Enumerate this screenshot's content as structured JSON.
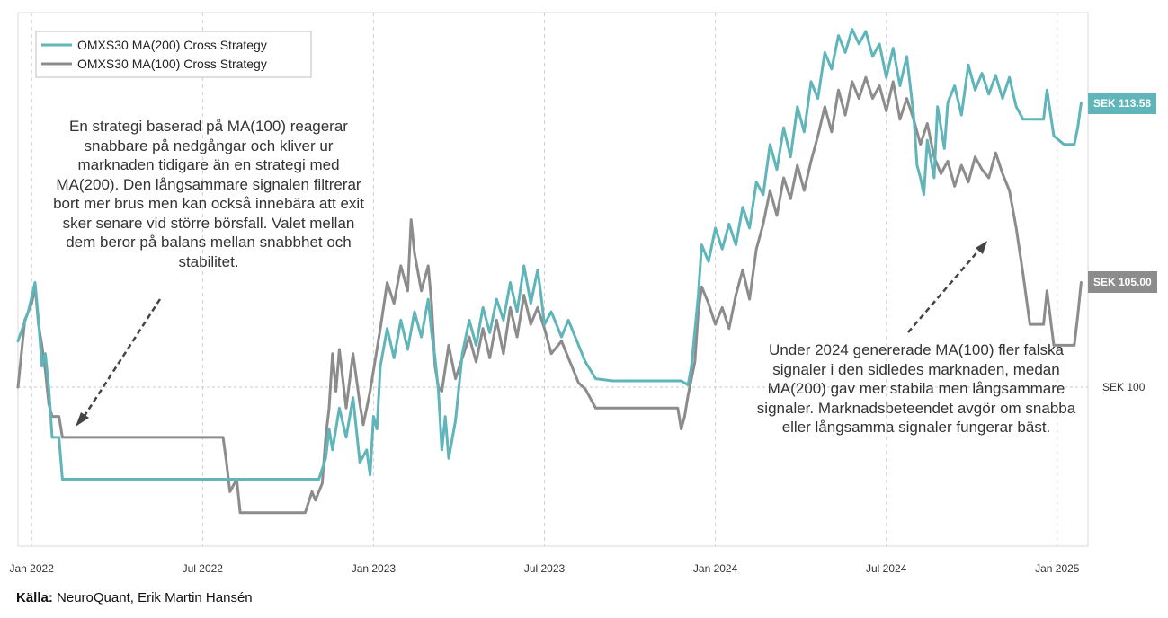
{
  "chart_data": {
    "type": "line",
    "x_axis": {
      "ticks": [
        "Jan 2022",
        "Jul 2022",
        "Jan 2023",
        "Jul 2023",
        "Jan 2024",
        "Jul 2024",
        "Jan 2025"
      ],
      "tick_dates": [
        2022.0,
        2022.5,
        2023.0,
        2023.5,
        2024.0,
        2024.5,
        2025.0
      ],
      "range": [
        2021.96,
        2025.09
      ]
    },
    "y_axis": {
      "range": [
        92.4,
        117.9
      ],
      "unit": "SEK",
      "grid": false
    },
    "reference_line": {
      "value": 100,
      "label": "SEK 100"
    },
    "legend": {
      "placement": "top-left",
      "entries": [
        "OMXS30 MA(200) Cross Strategy",
        "OMXS30 MA(100) Cross Strategy"
      ]
    },
    "series": [
      {
        "name": "OMXS30 MA(200) Cross Strategy",
        "color": "#5fb5b9",
        "end_label": "SEK 113.58",
        "points": [
          [
            2021.96,
            102.2
          ],
          [
            2021.99,
            103.6
          ],
          [
            2022.01,
            105.0
          ],
          [
            2022.02,
            103.2
          ],
          [
            2022.03,
            101.0
          ],
          [
            2022.04,
            101.6
          ],
          [
            2022.05,
            100.0
          ],
          [
            2022.06,
            97.6
          ],
          [
            2022.08,
            97.6
          ],
          [
            2022.09,
            95.6
          ],
          [
            2022.2,
            95.6
          ],
          [
            2022.4,
            95.6
          ],
          [
            2022.6,
            95.6
          ],
          [
            2022.8,
            95.6
          ],
          [
            2022.84,
            95.6
          ],
          [
            2022.86,
            96.6
          ],
          [
            2022.87,
            98.0
          ],
          [
            2022.88,
            97.0
          ],
          [
            2022.9,
            99.0
          ],
          [
            2022.92,
            97.6
          ],
          [
            2022.94,
            99.5
          ],
          [
            2022.96,
            96.4
          ],
          [
            2022.98,
            97.0
          ],
          [
            2022.99,
            95.8
          ],
          [
            2023.0,
            98.6
          ],
          [
            2023.01,
            98.0
          ],
          [
            2023.02,
            101.0
          ],
          [
            2023.04,
            102.8
          ],
          [
            2023.06,
            101.4
          ],
          [
            2023.08,
            103.2
          ],
          [
            2023.1,
            101.8
          ],
          [
            2023.12,
            103.6
          ],
          [
            2023.14,
            102.4
          ],
          [
            2023.16,
            104.2
          ],
          [
            2023.17,
            102.6
          ],
          [
            2023.18,
            101.4
          ],
          [
            2023.19,
            99.8
          ],
          [
            2023.2,
            97.0
          ],
          [
            2023.21,
            98.6
          ],
          [
            2023.22,
            96.6
          ],
          [
            2023.24,
            98.4
          ],
          [
            2023.26,
            101.6
          ],
          [
            2023.28,
            103.2
          ],
          [
            2023.3,
            102.0
          ],
          [
            2023.32,
            103.8
          ],
          [
            2023.34,
            102.6
          ],
          [
            2023.36,
            104.2
          ],
          [
            2023.38,
            103.2
          ],
          [
            2023.4,
            105.0
          ],
          [
            2023.42,
            103.6
          ],
          [
            2023.44,
            105.8
          ],
          [
            2023.46,
            104.0
          ],
          [
            2023.48,
            105.6
          ],
          [
            2023.49,
            104.4
          ],
          [
            2023.5,
            103.0
          ],
          [
            2023.52,
            103.6
          ],
          [
            2023.55,
            102.4
          ],
          [
            2023.57,
            103.2
          ],
          [
            2023.6,
            102.0
          ],
          [
            2023.62,
            101.2
          ],
          [
            2023.65,
            100.4
          ],
          [
            2023.7,
            100.3
          ],
          [
            2023.8,
            100.3
          ],
          [
            2023.9,
            100.3
          ],
          [
            2023.92,
            100.1
          ],
          [
            2023.93,
            101.0
          ],
          [
            2023.95,
            104.4
          ],
          [
            2023.96,
            106.8
          ],
          [
            2023.98,
            106.0
          ],
          [
            2024.0,
            107.6
          ],
          [
            2024.02,
            106.6
          ],
          [
            2024.04,
            107.8
          ],
          [
            2024.06,
            106.8
          ],
          [
            2024.08,
            108.6
          ],
          [
            2024.1,
            107.6
          ],
          [
            2024.12,
            109.8
          ],
          [
            2024.14,
            109.2
          ],
          [
            2024.16,
            111.6
          ],
          [
            2024.18,
            110.4
          ],
          [
            2024.2,
            112.4
          ],
          [
            2024.22,
            111.0
          ],
          [
            2024.24,
            113.4
          ],
          [
            2024.26,
            112.2
          ],
          [
            2024.28,
            114.6
          ],
          [
            2024.3,
            113.8
          ],
          [
            2024.32,
            116.0
          ],
          [
            2024.34,
            115.2
          ],
          [
            2024.36,
            116.8
          ],
          [
            2024.38,
            116.0
          ],
          [
            2024.4,
            117.1
          ],
          [
            2024.42,
            116.4
          ],
          [
            2024.44,
            117.0
          ],
          [
            2024.46,
            115.8
          ],
          [
            2024.48,
            116.4
          ],
          [
            2024.5,
            114.8
          ],
          [
            2024.52,
            116.2
          ],
          [
            2024.54,
            114.4
          ],
          [
            2024.56,
            115.8
          ],
          [
            2024.58,
            113.0
          ],
          [
            2024.59,
            110.6
          ],
          [
            2024.6,
            110.0
          ],
          [
            2024.61,
            109.2
          ],
          [
            2024.62,
            111.8
          ],
          [
            2024.64,
            110.0
          ],
          [
            2024.65,
            113.4
          ],
          [
            2024.67,
            111.4
          ],
          [
            2024.68,
            113.6
          ],
          [
            2024.7,
            114.4
          ],
          [
            2024.72,
            113.0
          ],
          [
            2024.74,
            115.4
          ],
          [
            2024.76,
            114.2
          ],
          [
            2024.78,
            115.0
          ],
          [
            2024.8,
            114.0
          ],
          [
            2024.82,
            114.9
          ],
          [
            2024.84,
            113.8
          ],
          [
            2024.86,
            114.8
          ],
          [
            2024.88,
            113.4
          ],
          [
            2024.9,
            112.8
          ],
          [
            2024.92,
            112.8
          ],
          [
            2024.96,
            112.8
          ],
          [
            2024.97,
            114.2
          ],
          [
            2024.99,
            112.0
          ],
          [
            2025.02,
            111.6
          ],
          [
            2025.05,
            111.6
          ],
          [
            2025.06,
            112.4
          ],
          [
            2025.07,
            113.58
          ]
        ]
      },
      {
        "name": "OMXS30 MA(100) Cross Strategy",
        "color": "#8c8c8c",
        "end_label": "SEK 105.00",
        "points": [
          [
            2021.96,
            100.0
          ],
          [
            2021.98,
            103.2
          ],
          [
            2022.0,
            104.0
          ],
          [
            2022.01,
            104.8
          ],
          [
            2022.02,
            103.0
          ],
          [
            2022.03,
            102.0
          ],
          [
            2022.04,
            100.8
          ],
          [
            2022.05,
            99.2
          ],
          [
            2022.06,
            98.6
          ],
          [
            2022.08,
            98.6
          ],
          [
            2022.09,
            97.6
          ],
          [
            2022.2,
            97.6
          ],
          [
            2022.4,
            97.6
          ],
          [
            2022.56,
            97.6
          ],
          [
            2022.57,
            96.4
          ],
          [
            2022.58,
            95.0
          ],
          [
            2022.6,
            95.6
          ],
          [
            2022.61,
            94.0
          ],
          [
            2022.65,
            94.0
          ],
          [
            2022.7,
            94.0
          ],
          [
            2022.75,
            94.0
          ],
          [
            2022.8,
            94.0
          ],
          [
            2022.82,
            95.0
          ],
          [
            2022.83,
            94.6
          ],
          [
            2022.85,
            95.4
          ],
          [
            2022.86,
            97.6
          ],
          [
            2022.87,
            99.0
          ],
          [
            2022.88,
            101.6
          ],
          [
            2022.89,
            99.8
          ],
          [
            2022.9,
            101.8
          ],
          [
            2022.92,
            99.0
          ],
          [
            2022.94,
            101.6
          ],
          [
            2022.96,
            99.2
          ],
          [
            2022.97,
            98.2
          ],
          [
            2022.99,
            99.8
          ],
          [
            2023.0,
            100.8
          ],
          [
            2023.02,
            102.8
          ],
          [
            2023.04,
            105.0
          ],
          [
            2023.06,
            104.0
          ],
          [
            2023.08,
            105.8
          ],
          [
            2023.1,
            104.6
          ],
          [
            2023.11,
            108.0
          ],
          [
            2023.12,
            106.4
          ],
          [
            2023.14,
            104.6
          ],
          [
            2023.16,
            105.8
          ],
          [
            2023.17,
            104.0
          ],
          [
            2023.18,
            101.0
          ],
          [
            2023.19,
            100.0
          ],
          [
            2023.2,
            99.8
          ],
          [
            2023.22,
            102.0
          ],
          [
            2023.24,
            100.4
          ],
          [
            2023.26,
            101.4
          ],
          [
            2023.28,
            102.4
          ],
          [
            2023.3,
            101.2
          ],
          [
            2023.32,
            102.8
          ],
          [
            2023.34,
            101.4
          ],
          [
            2023.36,
            103.2
          ],
          [
            2023.38,
            101.6
          ],
          [
            2023.4,
            103.8
          ],
          [
            2023.42,
            102.4
          ],
          [
            2023.44,
            104.4
          ],
          [
            2023.46,
            103.0
          ],
          [
            2023.48,
            103.8
          ],
          [
            2023.5,
            102.8
          ],
          [
            2023.52,
            101.6
          ],
          [
            2023.55,
            102.2
          ],
          [
            2023.58,
            101.0
          ],
          [
            2023.6,
            100.2
          ],
          [
            2023.62,
            99.9
          ],
          [
            2023.65,
            99.0
          ],
          [
            2023.7,
            99.0
          ],
          [
            2023.8,
            99.0
          ],
          [
            2023.89,
            99.0
          ],
          [
            2023.9,
            98.0
          ],
          [
            2023.91,
            98.6
          ],
          [
            2023.92,
            99.6
          ],
          [
            2023.94,
            101.2
          ],
          [
            2023.95,
            103.6
          ],
          [
            2023.96,
            104.8
          ],
          [
            2023.98,
            104.0
          ],
          [
            2024.0,
            103.0
          ],
          [
            2024.02,
            103.8
          ],
          [
            2024.04,
            102.8
          ],
          [
            2024.06,
            104.4
          ],
          [
            2024.08,
            105.6
          ],
          [
            2024.1,
            104.2
          ],
          [
            2024.12,
            106.6
          ],
          [
            2024.14,
            107.8
          ],
          [
            2024.16,
            109.4
          ],
          [
            2024.18,
            108.2
          ],
          [
            2024.2,
            110.0
          ],
          [
            2024.22,
            109.0
          ],
          [
            2024.24,
            110.6
          ],
          [
            2024.26,
            109.4
          ],
          [
            2024.28,
            110.8
          ],
          [
            2024.3,
            112.0
          ],
          [
            2024.32,
            113.4
          ],
          [
            2024.34,
            112.2
          ],
          [
            2024.36,
            114.2
          ],
          [
            2024.38,
            113.0
          ],
          [
            2024.4,
            114.6
          ],
          [
            2024.42,
            113.8
          ],
          [
            2024.44,
            114.8
          ],
          [
            2024.46,
            113.8
          ],
          [
            2024.48,
            114.4
          ],
          [
            2024.5,
            113.2
          ],
          [
            2024.52,
            114.6
          ],
          [
            2024.54,
            112.8
          ],
          [
            2024.56,
            113.8
          ],
          [
            2024.58,
            112.8
          ],
          [
            2024.6,
            111.6
          ],
          [
            2024.62,
            112.6
          ],
          [
            2024.64,
            111.0
          ],
          [
            2024.66,
            110.2
          ],
          [
            2024.68,
            110.8
          ],
          [
            2024.7,
            109.6
          ],
          [
            2024.72,
            110.6
          ],
          [
            2024.74,
            109.8
          ],
          [
            2024.76,
            111.0
          ],
          [
            2024.78,
            110.4
          ],
          [
            2024.8,
            110.0
          ],
          [
            2024.82,
            111.2
          ],
          [
            2024.84,
            110.2
          ],
          [
            2024.86,
            109.4
          ],
          [
            2024.88,
            107.6
          ],
          [
            2024.9,
            105.4
          ],
          [
            2024.92,
            103.0
          ],
          [
            2024.94,
            103.0
          ],
          [
            2024.96,
            103.0
          ],
          [
            2024.97,
            104.6
          ],
          [
            2024.99,
            102.0
          ],
          [
            2025.02,
            102.0
          ],
          [
            2025.05,
            102.0
          ],
          [
            2025.06,
            103.4
          ],
          [
            2025.07,
            105.0
          ]
        ]
      }
    ]
  },
  "annotations": {
    "left": "En strategi baserad på MA(100) reagerar snabbare på nedgångar och kliver ur marknaden tidigare än en strategi med MA(200). Den långsammare signalen filtrerar bort mer brus men kan också innebära att exit sker senare vid större börsfall. Valet mellan dem beror på balans mellan snabbhet och stabilitet.",
    "right": "Under 2024 genererade MA(100) fler falska signaler i den sidledes marknaden, medan MA(200) gav mer stabila men långsammare signaler. Marknadsbeteendet avgör om snabba eller långsamma signaler fungerar bäst."
  },
  "source": {
    "label": "Källa:",
    "text": "NeuroQuant, Erik Martin Hansén"
  }
}
